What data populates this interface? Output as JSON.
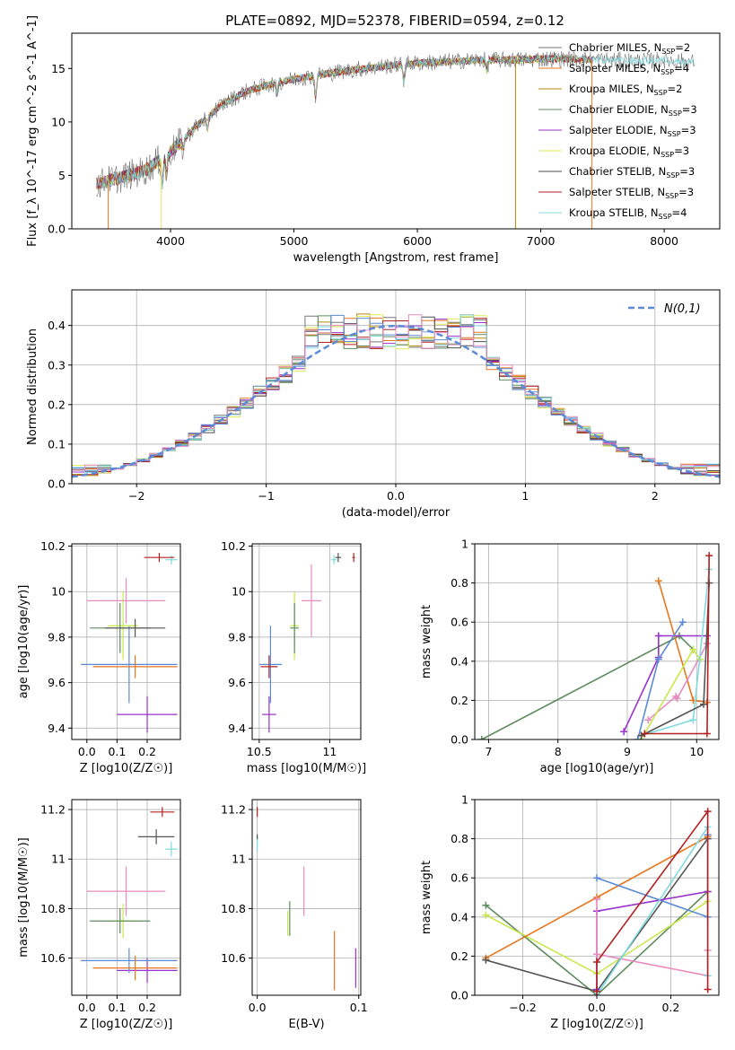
{
  "figure_title": "PLATE=0892, MJD=52378, FIBERID=0594, z=0.12",
  "colors": {
    "Chabrier MILES": "#777777",
    "Salpeter MILES": "#e6771f",
    "Kroupa MILES": "#b8860b",
    "Chabrier ELODIE": "#5e8c5e",
    "Salpeter ELODIE": "#9932cc",
    "Kroupa ELODIE": "#e2e85a",
    "Chabrier STELIB": "#4d4d4d",
    "Salpeter STELIB": "#b22222",
    "Kroupa STELIB": "#7fdbe0",
    "extra_blue": "#5b8bd6",
    "extra_pink": "#e88cc0",
    "extra_lime": "#c8e84a",
    "normal": "#5b8bd6"
  },
  "chart_data": [
    {
      "id": "spectrum",
      "type": "line",
      "xlabel": "wavelength [Angstrom, rest frame]",
      "ylabel": "Flux [f_λ 10^-17 erg cm^-2 s^-1 A^-1]",
      "xlim": [
        3200,
        8450
      ],
      "ylim": [
        0,
        18.3
      ],
      "xticks": [
        4000,
        5000,
        6000,
        7000,
        8000
      ],
      "yticks": [
        0,
        5,
        10,
        15
      ],
      "legend_position": "upper-right",
      "legend": [
        {
          "label": "Chabrier MILES, N",
          "nssp": "2"
        },
        {
          "label": "Salpeter MILES, N",
          "nssp": "4"
        },
        {
          "label": "Kroupa MILES, N",
          "nssp": "2"
        },
        {
          "label": "Chabrier ELODIE, N",
          "nssp": "3"
        },
        {
          "label": "Salpeter ELODIE, N",
          "nssp": "3"
        },
        {
          "label": "Kroupa ELODIE, N",
          "nssp": "3"
        },
        {
          "label": "Chabrier STELIB, N",
          "nssp": "3"
        },
        {
          "label": "Salpeter STELIB, N",
          "nssp": "3"
        },
        {
          "label": "Kroupa STELIB, N",
          "nssp": "4"
        }
      ],
      "continuum": {
        "x": [
          3400,
          3600,
          3800,
          4000,
          4200,
          4400,
          4600,
          4800,
          5000,
          5200,
          5500,
          5800,
          6000,
          6200,
          6500,
          6800,
          7000,
          7200,
          7500,
          7800,
          8000,
          8200
        ],
        "y": [
          4.2,
          4.8,
          5.5,
          7.2,
          9.5,
          11.5,
          12.8,
          13.5,
          14.0,
          14.4,
          14.9,
          15.3,
          15.5,
          15.6,
          15.8,
          15.8,
          15.9,
          15.9,
          15.8,
          15.7,
          15.8,
          15.6
        ]
      }
    },
    {
      "id": "residuals",
      "type": "histogram",
      "xlabel": "(data-model)/error",
      "ylabel": "Normed distribution",
      "xlim": [
        -2.5,
        2.5
      ],
      "ylim": [
        0,
        0.49
      ],
      "xticks": [
        -2,
        -1,
        0,
        1,
        2
      ],
      "yticks": [
        0.0,
        0.1,
        0.2,
        0.3,
        0.4
      ],
      "grid": true,
      "bin_width": 0.1,
      "normal_label": "N(0,1)",
      "legend_position": "upper-right"
    },
    {
      "id": "age-vs-Z",
      "type": "scatter",
      "xlabel": "Z [log10(Z/Z☉)]",
      "ylabel": "age [log10(age/yr)]",
      "xlim": [
        -0.05,
        0.31
      ],
      "ylim": [
        9.35,
        10.21
      ],
      "xticks": [
        0.0,
        0.1,
        0.2
      ],
      "yticks": [
        9.4,
        9.6,
        9.8,
        10.0,
        10.2
      ],
      "grid": true,
      "points": [
        {
          "x": 0.2,
          "y": 9.46,
          "xerr": 0.1,
          "yerr": 0.08,
          "color": "#9932cc"
        },
        {
          "x": 0.14,
          "y": 9.68,
          "xerr": 0.16,
          "yerr": 0.17,
          "color": "#5b8bd6"
        },
        {
          "x": 0.16,
          "y": 9.67,
          "xerr": 0.14,
          "yerr": 0.05,
          "color": "#e6771f"
        },
        {
          "x": 0.12,
          "y": 9.85,
          "xerr": 0.05,
          "yerr": 0.15,
          "color": "#c8e84a"
        },
        {
          "x": 0.11,
          "y": 9.84,
          "xerr": 0.1,
          "yerr": 0.11,
          "color": "#5e8c5e"
        },
        {
          "x": 0.16,
          "y": 9.84,
          "xerr": 0.1,
          "yerr": 0.04,
          "color": "#555555"
        },
        {
          "x": 0.13,
          "y": 9.96,
          "xerr": 0.13,
          "yerr": 0.1,
          "color": "#e88cc0"
        },
        {
          "x": 0.28,
          "y": 10.14,
          "xerr": 0.02,
          "yerr": 0.02,
          "color": "#7fdbe0"
        },
        {
          "x": 0.24,
          "y": 10.15,
          "xerr": 0.05,
          "yerr": 0.02,
          "color": "#b22222"
        }
      ]
    },
    {
      "id": "age-vs-mass",
      "type": "scatter",
      "xlabel": "mass [log10(M/M☉)]",
      "ylabel": "",
      "xlim": [
        10.45,
        11.22
      ],
      "ylim": [
        9.35,
        10.21
      ],
      "xticks": [
        10.5,
        11.0
      ],
      "yticks": [
        9.4,
        9.6,
        9.8,
        10.0,
        10.2
      ],
      "grid": true,
      "points": [
        {
          "x": 10.57,
          "y": 9.46,
          "xerr": 0.05,
          "yerr": 0.08,
          "color": "#9932cc"
        },
        {
          "x": 10.58,
          "y": 9.68,
          "xerr": 0.08,
          "yerr": 0.17,
          "color": "#5b8bd6"
        },
        {
          "x": 10.57,
          "y": 9.67,
          "xerr": 0.06,
          "yerr": 0.05,
          "color": "#b22222"
        },
        {
          "x": 10.75,
          "y": 9.85,
          "xerr": 0.03,
          "yerr": 0.15,
          "color": "#c8e84a"
        },
        {
          "x": 10.75,
          "y": 9.84,
          "xerr": 0.03,
          "yerr": 0.11,
          "color": "#5e8c5e"
        },
        {
          "x": 10.87,
          "y": 9.96,
          "xerr": 0.07,
          "yerr": 0.16,
          "color": "#e88cc0"
        },
        {
          "x": 11.03,
          "y": 10.14,
          "xerr": 0.02,
          "yerr": 0.02,
          "color": "#7fdbe0"
        },
        {
          "x": 11.06,
          "y": 10.15,
          "xerr": 0.02,
          "yerr": 0.02,
          "color": "#555555"
        },
        {
          "x": 11.17,
          "y": 10.15,
          "xerr": 0.01,
          "yerr": 0.02,
          "color": "#b22222"
        }
      ]
    },
    {
      "id": "weight-vs-age",
      "type": "line",
      "xlabel": "age [log10(age/yr)]",
      "ylabel": "mass weight",
      "xlim": [
        6.8,
        10.32
      ],
      "ylim": [
        0,
        1.0
      ],
      "xticks": [
        7,
        8,
        9,
        10
      ],
      "yticks": [
        0.0,
        0.2,
        0.4,
        0.6,
        0.8,
        1.0
      ],
      "grid": true,
      "series": [
        {
          "color": "#5e8c5e",
          "x": [
            6.9,
            9.75,
            9.95
          ],
          "y": [
            0.0,
            0.53,
            0.46
          ]
        },
        {
          "color": "#9932cc",
          "x": [
            8.95,
            9.45,
            9.45,
            10.15
          ],
          "y": [
            0.04,
            0.42,
            0.53,
            0.53
          ]
        },
        {
          "color": "#e6771f",
          "x": [
            9.45,
            9.95,
            10.15
          ],
          "y": [
            0.81,
            0.2,
            0.19
          ]
        },
        {
          "color": "#5b8bd6",
          "x": [
            9.15,
            9.45,
            9.8
          ],
          "y": [
            0.0,
            0.41,
            0.6
          ]
        },
        {
          "color": "#e88cc0",
          "x": [
            9.3,
            9.7,
            9.72,
            10.15
          ],
          "y": [
            0.1,
            0.22,
            0.21,
            0.49
          ]
        },
        {
          "color": "#c8e84a",
          "x": [
            9.2,
            9.95,
            10.05
          ],
          "y": [
            0.0,
            0.46,
            0.41
          ]
        },
        {
          "color": "#7fdbe0",
          "x": [
            9.2,
            9.95,
            10.18
          ],
          "y": [
            0.02,
            0.1,
            0.87
          ]
        },
        {
          "color": "#555555",
          "x": [
            9.2,
            10.1,
            10.18
          ],
          "y": [
            0.02,
            0.18,
            0.8
          ]
        },
        {
          "color": "#b22222",
          "x": [
            9.25,
            10.15,
            10.18
          ],
          "y": [
            0.03,
            0.03,
            0.94
          ]
        }
      ]
    },
    {
      "id": "mass-vs-Z",
      "type": "scatter",
      "xlabel": "Z [log10(Z/Z☉)]",
      "ylabel": "mass [log10(M/M☉)]",
      "xlim": [
        -0.05,
        0.31
      ],
      "ylim": [
        10.45,
        11.24
      ],
      "xticks": [
        0.0,
        0.1,
        0.2
      ],
      "yticks": [
        10.6,
        10.8,
        11.0,
        11.2
      ],
      "grid": true,
      "points": [
        {
          "x": 0.2,
          "y": 10.55,
          "xerr": 0.1,
          "yerr": 0.05,
          "color": "#9932cc"
        },
        {
          "x": 0.14,
          "y": 10.59,
          "xerr": 0.16,
          "yerr": 0.05,
          "color": "#5b8bd6"
        },
        {
          "x": 0.16,
          "y": 10.56,
          "xerr": 0.14,
          "yerr": 0.05,
          "color": "#e6771f"
        },
        {
          "x": 0.12,
          "y": 10.75,
          "xerr": 0.05,
          "yerr": 0.07,
          "color": "#c8e84a"
        },
        {
          "x": 0.11,
          "y": 10.75,
          "xerr": 0.1,
          "yerr": 0.05,
          "color": "#5e8c5e"
        },
        {
          "x": 0.13,
          "y": 10.87,
          "xerr": 0.13,
          "yerr": 0.1,
          "color": "#e88cc0"
        },
        {
          "x": 0.23,
          "y": 11.09,
          "xerr": 0.06,
          "yerr": 0.03,
          "color": "#555555"
        },
        {
          "x": 0.28,
          "y": 11.04,
          "xerr": 0.02,
          "yerr": 0.03,
          "color": "#7fdbe0"
        },
        {
          "x": 0.25,
          "y": 11.19,
          "xerr": 0.04,
          "yerr": 0.02,
          "color": "#b22222"
        }
      ]
    },
    {
      "id": "mass-vs-ebv",
      "type": "scatter",
      "xlabel": "E(B-V)",
      "ylabel": "",
      "xlim": [
        -0.005,
        0.102
      ],
      "ylim": [
        10.45,
        11.24
      ],
      "xticks": [
        0.0,
        0.1
      ],
      "yticks": [
        10.6,
        10.8,
        11.0,
        11.2
      ],
      "grid": true,
      "points": [
        {
          "x": 0.0,
          "y": 11.19,
          "xerr": 0.0,
          "yerr": 0.02,
          "color": "#b22222"
        },
        {
          "x": 0.0,
          "y": 11.06,
          "xerr": 0.0,
          "yerr": 0.03,
          "color": "#7fdbe0"
        },
        {
          "x": 0.0,
          "y": 11.09,
          "xerr": 0.0,
          "yerr": 0.01,
          "color": "#555555"
        },
        {
          "x": 0.046,
          "y": 10.87,
          "xerr": 0.0,
          "yerr": 0.1,
          "color": "#e88cc0"
        },
        {
          "x": 0.032,
          "y": 10.76,
          "xerr": 0.0,
          "yerr": 0.07,
          "color": "#5e8c5e"
        },
        {
          "x": 0.03,
          "y": 10.74,
          "xerr": 0.0,
          "yerr": 0.05,
          "color": "#c8e84a"
        },
        {
          "x": 0.076,
          "y": 10.59,
          "xerr": 0.0,
          "yerr": 0.12,
          "color": "#e6771f"
        },
        {
          "x": 0.097,
          "y": 10.56,
          "xerr": 0.0,
          "yerr": 0.08,
          "color": "#9932cc"
        }
      ]
    },
    {
      "id": "weight-vs-Z",
      "type": "line",
      "xlabel": "Z [log10(Z/Z☉)]",
      "ylabel": "mass weight",
      "xlim": [
        -0.33,
        0.33
      ],
      "ylim": [
        0,
        1.0
      ],
      "xticks": [
        -0.2,
        0.0,
        0.2
      ],
      "yticks": [
        0.0,
        0.2,
        0.4,
        0.6,
        0.8,
        1.0
      ],
      "grid": true,
      "series": [
        {
          "color": "#5e8c5e",
          "x": [
            -0.3,
            0.0,
            0.3
          ],
          "y": [
            0.46,
            0.0,
            0.53
          ]
        },
        {
          "color": "#c8e84a",
          "x": [
            -0.3,
            0.0,
            0.3
          ],
          "y": [
            0.41,
            0.11,
            0.48
          ]
        },
        {
          "color": "#e6771f",
          "x": [
            -0.3,
            0.0,
            0.3
          ],
          "y": [
            0.19,
            0.5,
            0.81
          ]
        },
        {
          "color": "#555555",
          "x": [
            -0.3,
            0.0,
            0.3
          ],
          "y": [
            0.18,
            0.02,
            0.8
          ]
        },
        {
          "color": "#5b8bd6",
          "x": [
            0.0,
            0.3,
            0.3
          ],
          "y": [
            0.6,
            0.4,
            0.82
          ]
        },
        {
          "color": "#9932cc",
          "x": [
            0.0,
            0.0,
            0.3
          ],
          "y": [
            0.03,
            0.43,
            0.53
          ]
        },
        {
          "color": "#e88cc0",
          "x": [
            0.0,
            0.0,
            0.3,
            0.3
          ],
          "y": [
            0.49,
            0.21,
            0.1,
            0.23
          ]
        },
        {
          "color": "#7fdbe0",
          "x": [
            0.0,
            0.3,
            0.3
          ],
          "y": [
            0.0,
            0.86,
            0.1
          ]
        },
        {
          "color": "#b22222",
          "x": [
            0.0,
            0.0,
            0.3,
            0.3
          ],
          "y": [
            0.02,
            0.17,
            0.94,
            0.03
          ]
        }
      ]
    }
  ]
}
